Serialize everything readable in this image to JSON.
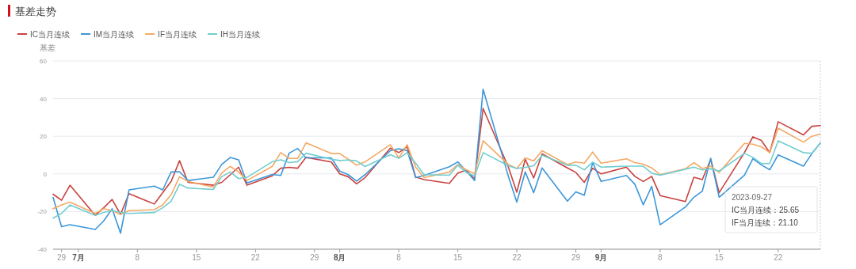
{
  "chart_data": {
    "type": "line",
    "title": "基差走势",
    "ylabel": "基差",
    "x": [
      "2023-06-28",
      "2023-06-29",
      "2023-06-30",
      "2023-07-03",
      "2023-07-04",
      "2023-07-05",
      "2023-07-06",
      "2023-07-07",
      "2023-07-10",
      "2023-07-11",
      "2023-07-12",
      "2023-07-13",
      "2023-07-14",
      "2023-07-17",
      "2023-07-18",
      "2023-07-19",
      "2023-07-20",
      "2023-07-21",
      "2023-07-24",
      "2023-07-25",
      "2023-07-26",
      "2023-07-27",
      "2023-07-28",
      "2023-07-31",
      "2023-08-01",
      "2023-08-02",
      "2023-08-03",
      "2023-08-04",
      "2023-08-07",
      "2023-08-08",
      "2023-08-09",
      "2023-08-10",
      "2023-08-11",
      "2023-08-14",
      "2023-08-15",
      "2023-08-16",
      "2023-08-17",
      "2023-08-18",
      "2023-08-21",
      "2023-08-22",
      "2023-08-23",
      "2023-08-24",
      "2023-08-25",
      "2023-08-28",
      "2023-08-29",
      "2023-08-30",
      "2023-08-31",
      "2023-09-01",
      "2023-09-04",
      "2023-09-05",
      "2023-09-06",
      "2023-09-07",
      "2023-09-08",
      "2023-09-11",
      "2023-09-12",
      "2023-09-13",
      "2023-09-14",
      "2023-09-15",
      "2023-09-18",
      "2023-09-19",
      "2023-09-20",
      "2023-09-21",
      "2023-09-22",
      "2023-09-25",
      "2023-09-26",
      "2023-09-27"
    ],
    "series": [
      {
        "name": "IC当月连续",
        "color": "#c8423e",
        "values": [
          -10.8,
          -14,
          -6,
          -22,
          -18,
          -13.6,
          -21.5,
          -10.5,
          -16,
          -10,
          -4,
          7,
          -4.5,
          -6,
          -4.5,
          -0.5,
          3.6,
          -6,
          -1,
          3,
          3.5,
          3,
          8.8,
          6.3,
          0,
          -1.5,
          -5.3,
          -2,
          13.7,
          11.3,
          14.4,
          -1.7,
          -3,
          -5,
          0.4,
          2,
          -2.7,
          34.8,
          3.6,
          -9.7,
          7.8,
          -2.2,
          10.6,
          3.2,
          0.8,
          -4.5,
          3,
          0,
          3.6,
          -1.3,
          -4,
          -1.3,
          -11.5,
          -14.7,
          -1.8,
          -3,
          7.7,
          -10,
          11.3,
          19.7,
          17.8,
          11.3,
          27.7,
          20.7,
          25.3,
          25.65
        ]
      },
      {
        "name": "IM当月连续",
        "color": "#3b97d9",
        "values": [
          -12.5,
          -28,
          -27,
          -29.5,
          -25,
          -18.5,
          -31.5,
          -8.5,
          -6.5,
          -8.5,
          1,
          1.2,
          -3.5,
          -1.8,
          5,
          8.7,
          7.5,
          -4.8,
          -0.3,
          -0.8,
          11,
          13.5,
          8.5,
          8.5,
          1.5,
          -0.4,
          -3.8,
          -0.4,
          12.3,
          13.4,
          12.3,
          -2,
          -0.8,
          3.8,
          6.4,
          1.5,
          -3.5,
          45,
          -1.3,
          -15,
          1.1,
          -10,
          3.2,
          -14.5,
          -9.5,
          -11.3,
          6,
          -4,
          -0.8,
          -5.5,
          -16.4,
          -6.6,
          -27,
          -17.6,
          -12.4,
          -9.2,
          8.3,
          -12.4,
          -0.7,
          8.1,
          4.8,
          2.2,
          10.1,
          4.1,
          10.8,
          16.4
        ]
      },
      {
        "name": "IF当月连续",
        "color": "#f3a966",
        "values": [
          -18.5,
          -16.5,
          -15,
          -21,
          -18.5,
          -19.5,
          -21.5,
          -19.5,
          -19,
          -16.5,
          -11,
          -1.5,
          -4,
          -7,
          0.5,
          4,
          1,
          -3.5,
          4,
          11.3,
          8.2,
          8.2,
          16.5,
          10.8,
          10.8,
          7.8,
          4.6,
          6.4,
          15.5,
          8.5,
          15.5,
          3.6,
          -2,
          1,
          5,
          2.2,
          0.1,
          17.6,
          5,
          2.9,
          8.5,
          6.9,
          12.3,
          5,
          6.3,
          5.7,
          11.6,
          5.7,
          8,
          6,
          5.2,
          3.2,
          -0.4,
          2.7,
          6,
          2.9,
          4.1,
          0.8,
          16.2,
          15.8,
          14.4,
          11.3,
          24.3,
          16.9,
          20,
          21.1
        ]
      },
      {
        "name": "IH当月连续",
        "color": "#72cdd0",
        "values": [
          -23.5,
          -21,
          -16.5,
          -22,
          -20.5,
          -19.5,
          -20.5,
          -21,
          -20.5,
          -18,
          -14.5,
          -5.5,
          -7.5,
          -8.3,
          -1.5,
          1,
          -2.5,
          -1.8,
          6.5,
          7.5,
          6,
          6.5,
          11,
          7.8,
          7.1,
          7.4,
          6.9,
          3.9,
          10.2,
          8.3,
          11.3,
          5.7,
          -0.4,
          -0.7,
          4.6,
          0.8,
          -1,
          11.3,
          4.3,
          2.9,
          3.5,
          4.3,
          9.9,
          4.6,
          4.6,
          2.2,
          6.3,
          3.6,
          4.1,
          4.1,
          4.1,
          0.4,
          -0.7,
          2.5,
          3.6,
          2.1,
          2.7,
          1.5,
          10.9,
          8.8,
          5.5,
          5.5,
          17.6,
          11.3,
          10.9,
          16.4
        ]
      }
    ],
    "xlim": [
      "2023-06-28",
      "2023-09-27"
    ],
    "xticks": [
      {
        "value": "2023-06-29",
        "label": "29"
      },
      {
        "value": "2023-07-01",
        "label": "7月"
      },
      {
        "value": "2023-07-08",
        "label": "8"
      },
      {
        "value": "2023-07-15",
        "label": "15"
      },
      {
        "value": "2023-07-22",
        "label": "22"
      },
      {
        "value": "2023-07-29",
        "label": "29"
      },
      {
        "value": "2023-08-01",
        "label": "8月"
      },
      {
        "value": "2023-08-08",
        "label": "8"
      },
      {
        "value": "2023-08-15",
        "label": "15"
      },
      {
        "value": "2023-08-22",
        "label": "22"
      },
      {
        "value": "2023-08-29",
        "label": "29"
      },
      {
        "value": "2023-09-01",
        "label": "9月"
      },
      {
        "value": "2023-09-08",
        "label": "8"
      },
      {
        "value": "2023-09-15",
        "label": "15"
      },
      {
        "value": "2023-09-22",
        "label": "22"
      }
    ],
    "ylim": [
      -40,
      60
    ],
    "yticks": [
      -40,
      -20,
      0,
      20,
      40,
      60
    ],
    "grid": "y",
    "legend": "top left",
    "marker": "none",
    "line_style": "solid",
    "annotations": [
      "2023-09-27",
      "IC当月连续：25.65",
      "IF当月连续：21.10"
    ]
  }
}
